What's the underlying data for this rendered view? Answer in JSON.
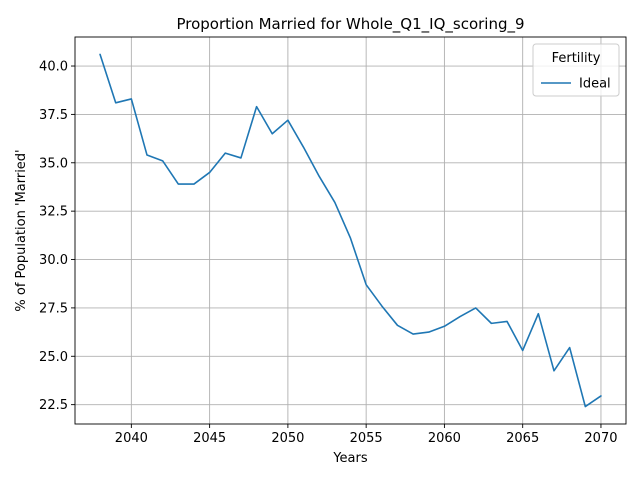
{
  "chart_data": {
    "type": "line",
    "title": "Proportion Married for Whole_Q1_IQ_scoring_9",
    "xlabel": "Years",
    "ylabel": "% of Population 'Married'",
    "xlim": [
      2036.4,
      2071.6
    ],
    "ylim": [
      21.5,
      41.5
    ],
    "x_ticks": [
      2040,
      2045,
      2050,
      2055,
      2060,
      2065,
      2070
    ],
    "y_ticks": [
      22.5,
      25.0,
      27.5,
      30.0,
      32.5,
      35.0,
      37.5,
      40.0
    ],
    "x_tick_labels": [
      "2040",
      "2045",
      "2050",
      "2055",
      "2060",
      "2065",
      "2070"
    ],
    "y_tick_labels": [
      "22.5",
      "25.0",
      "27.5",
      "30.0",
      "32.5",
      "35.0",
      "37.5",
      "40.0"
    ],
    "grid": true,
    "legend": {
      "title": "Fertility",
      "position": "upper right"
    },
    "series": [
      {
        "name": "Ideal",
        "color": "#1f77b4",
        "x": [
          2038,
          2039,
          2040,
          2041,
          2042,
          2043,
          2044,
          2045,
          2046,
          2047,
          2048,
          2049,
          2050,
          2051,
          2052,
          2053,
          2054,
          2055,
          2056,
          2057,
          2058,
          2059,
          2060,
          2061,
          2062,
          2063,
          2064,
          2065,
          2066,
          2067,
          2068,
          2069,
          2070
        ],
        "values": [
          40.6,
          38.1,
          38.3,
          35.4,
          35.1,
          33.9,
          33.9,
          34.5,
          35.5,
          35.25,
          37.9,
          36.5,
          37.2,
          35.8,
          34.3,
          32.95,
          31.1,
          28.7,
          27.6,
          26.6,
          26.15,
          26.25,
          26.55,
          27.05,
          27.5,
          26.7,
          26.8,
          25.3,
          27.2,
          24.25,
          25.45,
          22.4,
          22.95
        ]
      }
    ]
  }
}
